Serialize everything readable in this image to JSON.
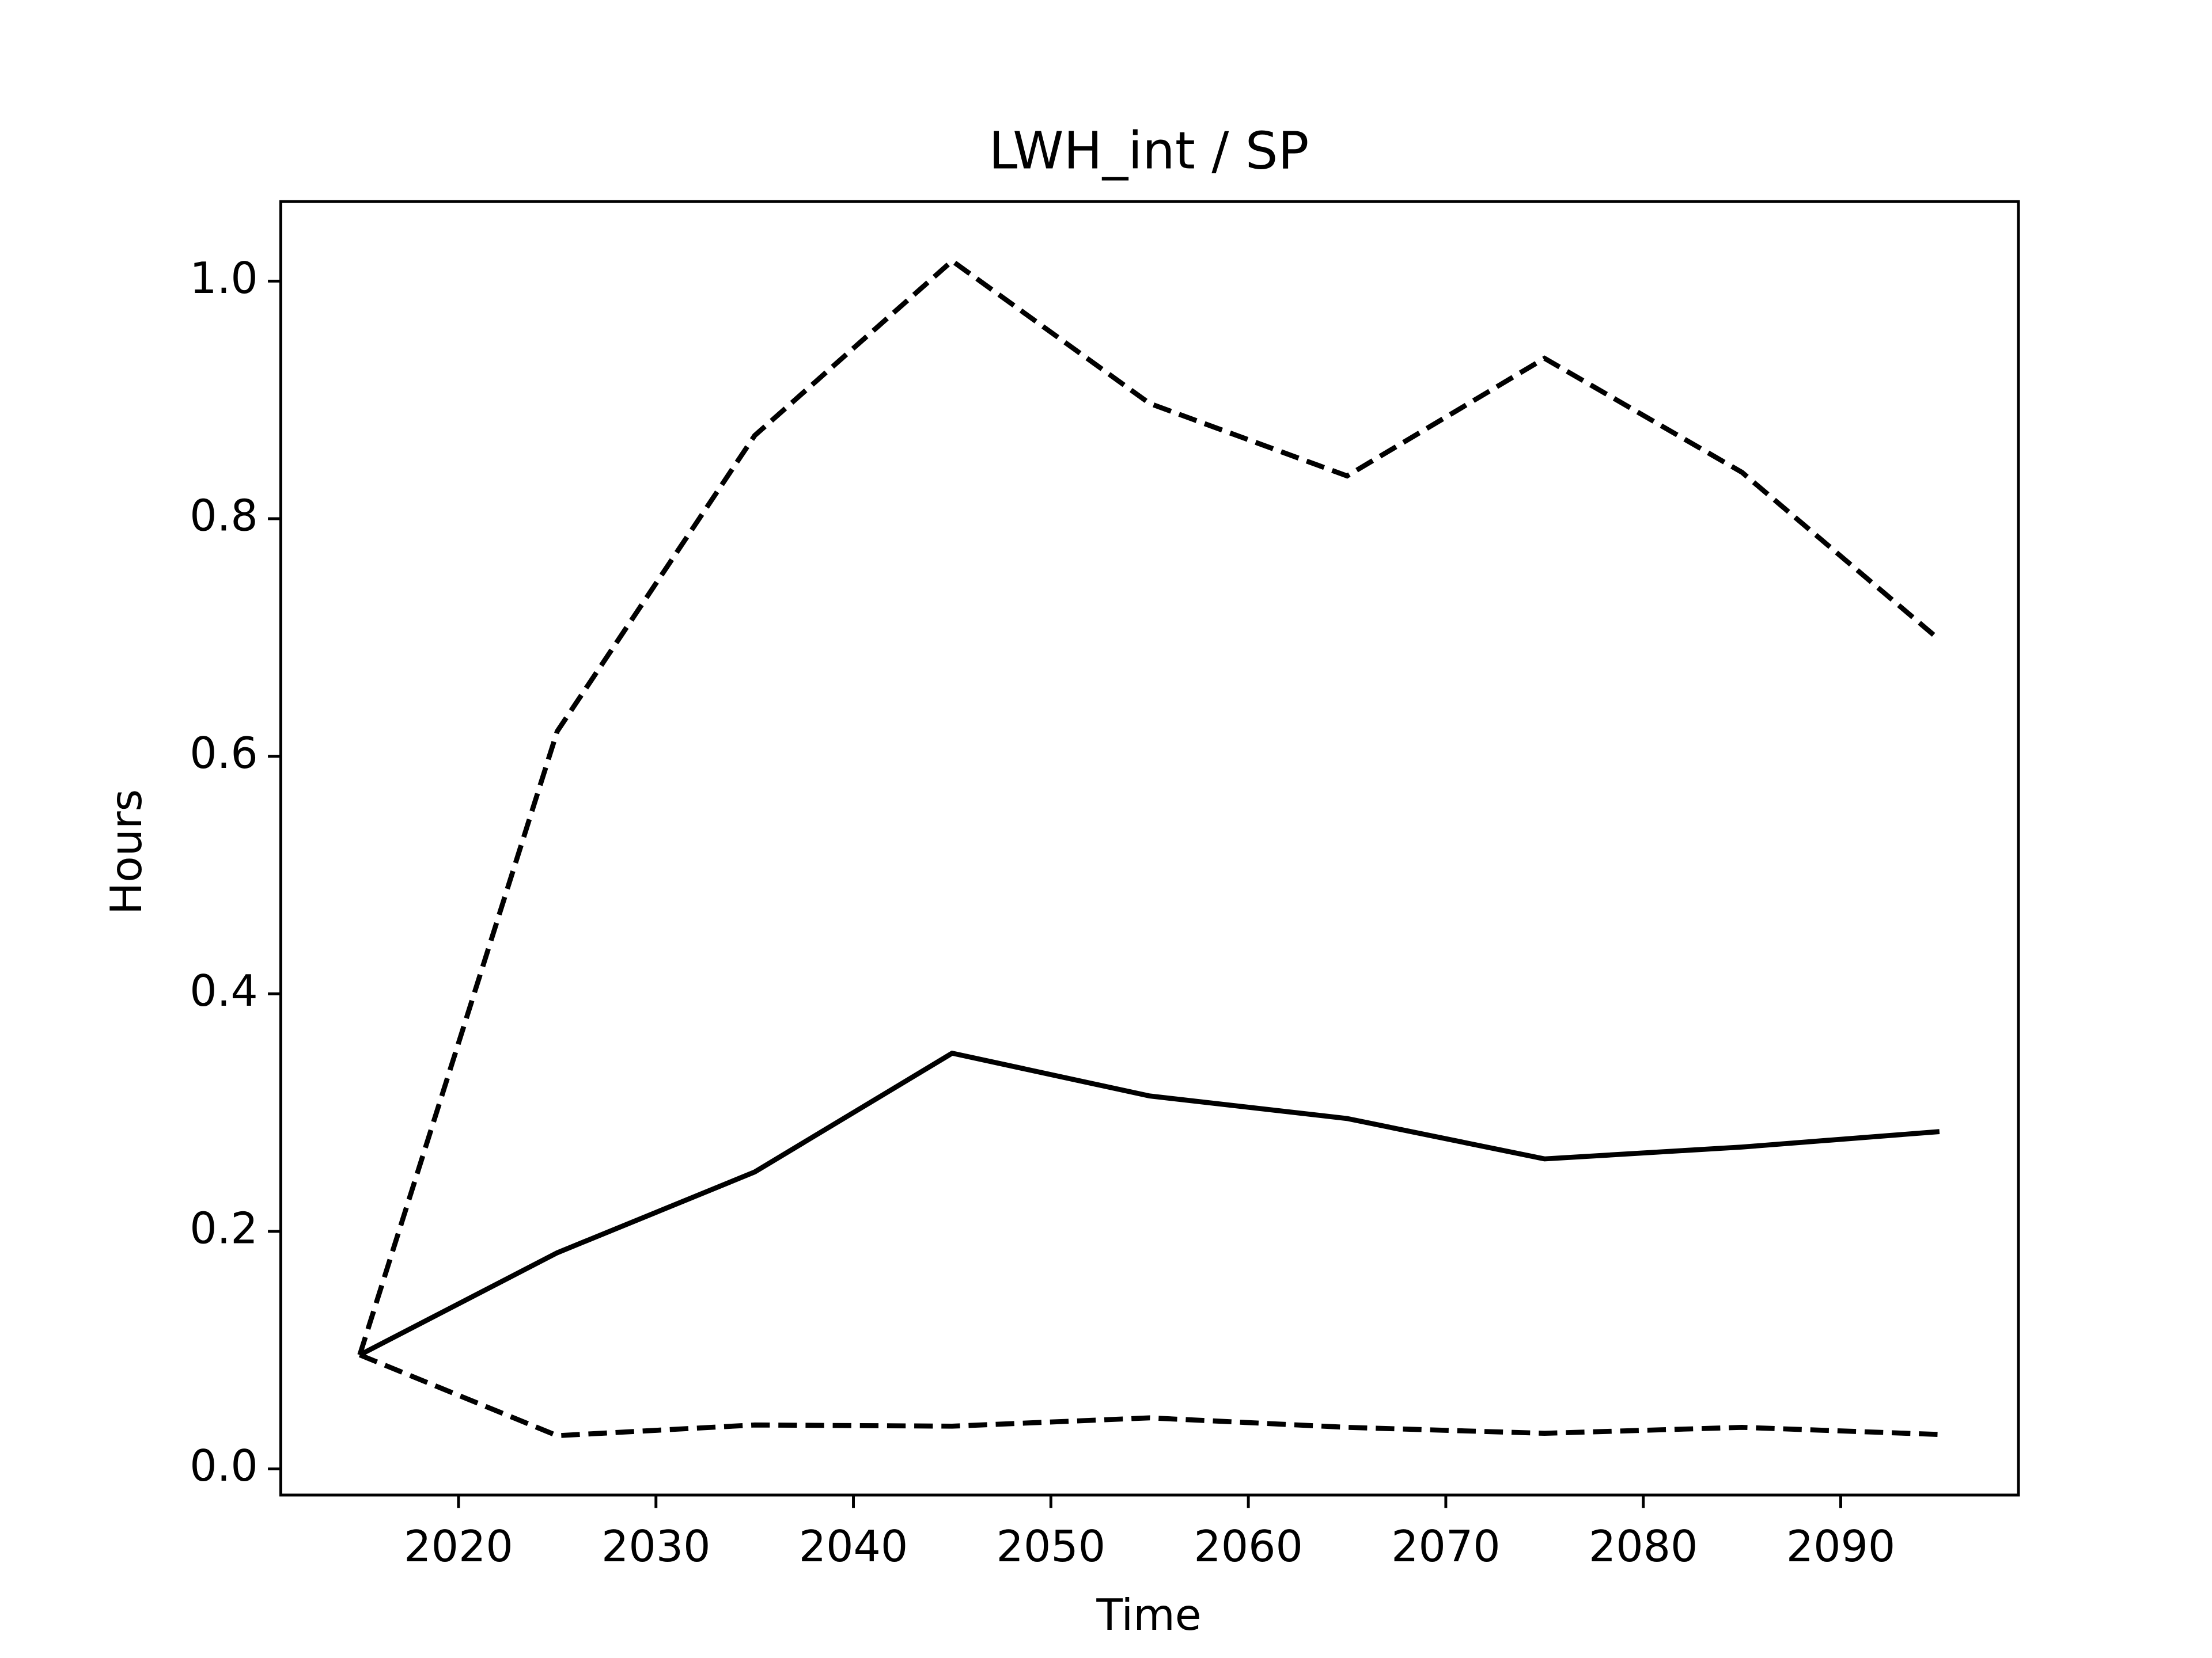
{
  "chart_data": {
    "type": "line",
    "title": "LWH_int / SP",
    "xlabel": "Time",
    "ylabel": "Hours",
    "x": [
      2015,
      2025,
      2035,
      2045,
      2055,
      2065,
      2075,
      2085,
      2095
    ],
    "series": [
      {
        "color": "#000000",
        "linestyle": "solid",
        "values": [
          0.096,
          0.182,
          0.25,
          0.35,
          0.314,
          0.295,
          0.261,
          0.271,
          0.284
        ]
      },
      {
        "color": "#000000",
        "linestyle": "dashed",
        "values": [
          0.096,
          0.621,
          0.87,
          1.017,
          0.897,
          0.836,
          0.935,
          0.839,
          0.698
        ]
      },
      {
        "color": "#000000",
        "linestyle": "dashed",
        "values": [
          0.096,
          0.028,
          0.037,
          0.036,
          0.043,
          0.035,
          0.03,
          0.035,
          0.029
        ]
      }
    ],
    "xlim": [
      2011,
      2099
    ],
    "ylim": [
      -0.022,
      1.067
    ],
    "xticks": [
      2020,
      2030,
      2040,
      2050,
      2060,
      2070,
      2080,
      2090
    ],
    "yticks": [
      {
        "value": 0,
        "label": "0.0"
      },
      0.2,
      0.4,
      0.6,
      0.8,
      {
        "value": 1,
        "label": "1.0"
      }
    ],
    "grid": false
  }
}
